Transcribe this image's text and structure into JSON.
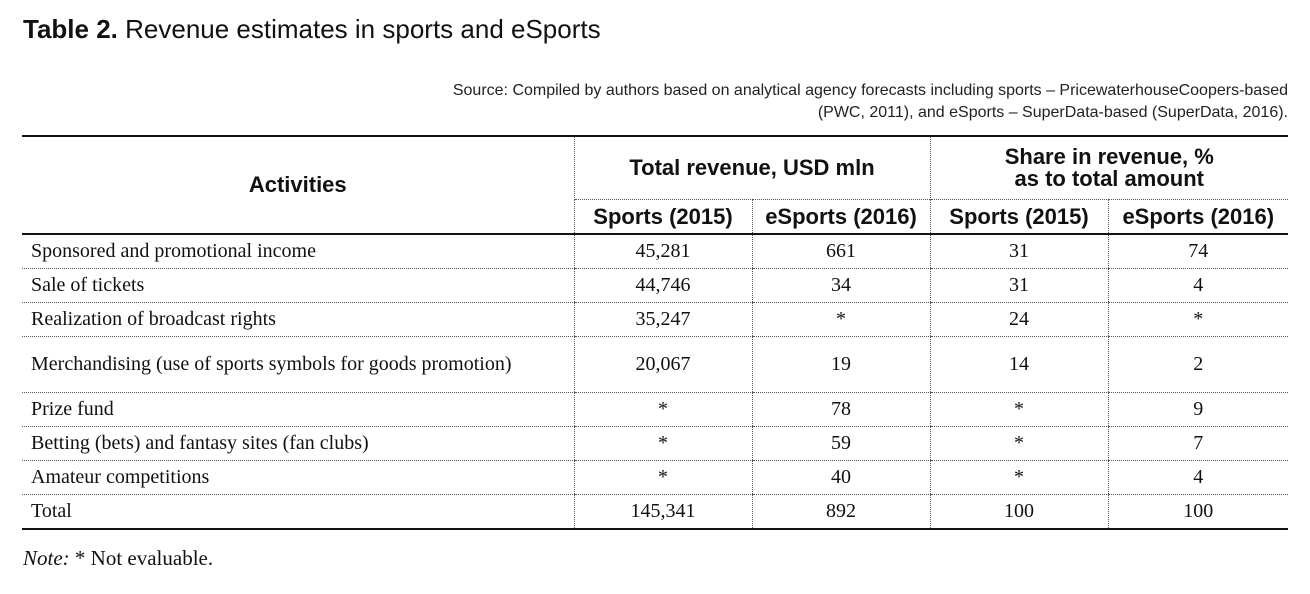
{
  "title": {
    "label": "Table 2.",
    "text": "Revenue estimates in sports and eSports"
  },
  "source": {
    "line1": "Source: Compiled by authors based on analytical agency forecasts including sports – PricewaterhouseCoopers-based",
    "line2": "(PWC, 2011), and eSports – SuperData-based (SuperData, 2016)."
  },
  "table": {
    "header": {
      "activities": "Activities",
      "group1": "Total revenue, USD mln",
      "group2_line1": "Share in revenue, %",
      "group2_line2": "as to total amount",
      "sub": [
        "Sports (2015)",
        "eSports (2016)",
        "Sports (2015)",
        "eSports (2016)"
      ]
    },
    "rows": [
      {
        "activity": "Sponsored and promotional income",
        "sports_rev": "45,281",
        "esports_rev": "661",
        "sports_share": "31",
        "esports_share": "74"
      },
      {
        "activity": "Sale of tickets",
        "sports_rev": "44,746",
        "esports_rev": "34",
        "sports_share": "31",
        "esports_share": "4"
      },
      {
        "activity": "Realization of broadcast rights",
        "sports_rev": "35,247",
        "esports_rev": "*",
        "sports_share": "24",
        "esports_share": "*"
      },
      {
        "activity": "Merchandising (use of sports symbols for goods promotion)",
        "sports_rev": "20,067",
        "esports_rev": "19",
        "sports_share": "14",
        "esports_share": "2"
      },
      {
        "activity": "Prize fund",
        "sports_rev": "*",
        "esports_rev": "78",
        "sports_share": "*",
        "esports_share": "9"
      },
      {
        "activity": "Betting (bets) and fantasy sites (fan clubs)",
        "sports_rev": "*",
        "esports_rev": "59",
        "sports_share": "*",
        "esports_share": "7"
      },
      {
        "activity": "Amateur competitions",
        "sports_rev": "*",
        "esports_rev": "40",
        "sports_share": "*",
        "esports_share": "4"
      },
      {
        "activity": "Total",
        "sports_rev": "145,341",
        "esports_rev": "892",
        "sports_share": "100",
        "esports_share": "100"
      }
    ]
  },
  "note": {
    "label": "Note:",
    "text": " * Not evaluable."
  }
}
